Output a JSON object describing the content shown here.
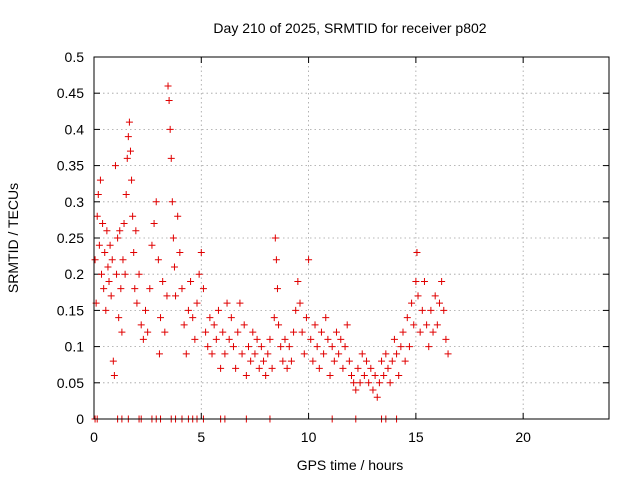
{
  "chart_data": {
    "type": "scatter",
    "title": "Day 210 of 2025, SRMTID for receiver p802",
    "xlabel": "GPS time / hours",
    "ylabel": "SRMTID / TECUs",
    "xlim": [
      0,
      24
    ],
    "ylim": [
      0,
      0.5
    ],
    "xticks": [
      0,
      5,
      10,
      15,
      20
    ],
    "yticks": [
      0,
      0.05,
      0.1,
      0.15,
      0.2,
      0.25,
      0.3,
      0.35,
      0.4,
      0.45,
      0.5
    ],
    "xtick_labels": [
      "0",
      "5",
      "10",
      "15",
      "20"
    ],
    "ytick_labels": [
      "0",
      "0.05",
      "0.1",
      "0.15",
      "0.2",
      "0.25",
      "0.3",
      "0.35",
      "0.4",
      "0.45",
      "0.5"
    ],
    "grid": true,
    "marker": "+",
    "series": [
      {
        "name": "SRMTID",
        "color": "#e00000",
        "points": [
          [
            0.05,
            0.22
          ],
          [
            0.1,
            0.16
          ],
          [
            0.15,
            0.28
          ],
          [
            0.2,
            0.31
          ],
          [
            0.25,
            0.24
          ],
          [
            0.3,
            0.33
          ],
          [
            0.35,
            0.2
          ],
          [
            0.4,
            0.27
          ],
          [
            0.45,
            0.18
          ],
          [
            0.5,
            0.23
          ],
          [
            0.55,
            0.15
          ],
          [
            0.6,
            0.26
          ],
          [
            0.65,
            0.21
          ],
          [
            0.7,
            0.19
          ],
          [
            0.75,
            0.24
          ],
          [
            0.8,
            0.17
          ],
          [
            0.85,
            0.22
          ],
          [
            0.9,
            0.08
          ],
          [
            0.95,
            0.06
          ],
          [
            1.0,
            0.35
          ],
          [
            1.05,
            0.2
          ],
          [
            1.1,
            0.25
          ],
          [
            1.15,
            0.14
          ],
          [
            1.2,
            0.26
          ],
          [
            1.25,
            0.18
          ],
          [
            1.3,
            0.12
          ],
          [
            1.35,
            0.22
          ],
          [
            1.4,
            0.27
          ],
          [
            1.45,
            0.2
          ],
          [
            1.5,
            0.31
          ],
          [
            1.55,
            0.36
          ],
          [
            1.6,
            0.39
          ],
          [
            1.65,
            0.41
          ],
          [
            1.7,
            0.37
          ],
          [
            1.75,
            0.33
          ],
          [
            1.8,
            0.28
          ],
          [
            1.85,
            0.23
          ],
          [
            1.9,
            0.18
          ],
          [
            1.95,
            0.26
          ],
          [
            2.0,
            0.16
          ],
          [
            2.1,
            0.2
          ],
          [
            2.2,
            0.13
          ],
          [
            2.3,
            0.11
          ],
          [
            2.4,
            0.15
          ],
          [
            2.5,
            0.12
          ],
          [
            2.6,
            0.18
          ],
          [
            2.7,
            0.24
          ],
          [
            2.8,
            0.27
          ],
          [
            2.9,
            0.3
          ],
          [
            3.0,
            0.22
          ],
          [
            3.05,
            0.09
          ],
          [
            3.1,
            0.14
          ],
          [
            3.2,
            0.19
          ],
          [
            3.3,
            0.12
          ],
          [
            3.4,
            0.17
          ],
          [
            3.45,
            0.46
          ],
          [
            3.5,
            0.44
          ],
          [
            3.55,
            0.4
          ],
          [
            3.6,
            0.36
          ],
          [
            3.65,
            0.3
          ],
          [
            3.7,
            0.25
          ],
          [
            3.75,
            0.21
          ],
          [
            3.8,
            0.17
          ],
          [
            3.9,
            0.28
          ],
          [
            4.0,
            0.23
          ],
          [
            4.1,
            0.18
          ],
          [
            4.2,
            0.13
          ],
          [
            4.3,
            0.09
          ],
          [
            4.4,
            0.15
          ],
          [
            4.5,
            0.19
          ],
          [
            4.6,
            0.14
          ],
          [
            4.7,
            0.11
          ],
          [
            4.8,
            0.16
          ],
          [
            4.9,
            0.2
          ],
          [
            5.0,
            0.23
          ],
          [
            5.1,
            0.18
          ],
          [
            5.2,
            0.12
          ],
          [
            5.3,
            0.1
          ],
          [
            5.4,
            0.14
          ],
          [
            5.5,
            0.09
          ],
          [
            5.6,
            0.13
          ],
          [
            5.7,
            0.11
          ],
          [
            5.8,
            0.15
          ],
          [
            5.9,
            0.07
          ],
          [
            6.0,
            0.12
          ],
          [
            6.1,
            0.09
          ],
          [
            6.2,
            0.16
          ],
          [
            6.3,
            0.11
          ],
          [
            6.4,
            0.14
          ],
          [
            6.5,
            0.1
          ],
          [
            6.6,
            0.07
          ],
          [
            6.7,
            0.12
          ],
          [
            6.8,
            0.16
          ],
          [
            6.9,
            0.09
          ],
          [
            7.0,
            0.13
          ],
          [
            7.1,
            0.06
          ],
          [
            7.2,
            0.1
          ],
          [
            7.3,
            0.08
          ],
          [
            7.4,
            0.12
          ],
          [
            7.5,
            0.09
          ],
          [
            7.6,
            0.11
          ],
          [
            7.7,
            0.07
          ],
          [
            7.8,
            0.1
          ],
          [
            7.9,
            0.08
          ],
          [
            8.0,
            0.06
          ],
          [
            8.1,
            0.09
          ],
          [
            8.2,
            0.11
          ],
          [
            8.3,
            0.07
          ],
          [
            8.4,
            0.14
          ],
          [
            8.45,
            0.25
          ],
          [
            8.5,
            0.22
          ],
          [
            8.55,
            0.18
          ],
          [
            8.6,
            0.13
          ],
          [
            8.7,
            0.1
          ],
          [
            8.8,
            0.08
          ],
          [
            8.9,
            0.11
          ],
          [
            9.0,
            0.07
          ],
          [
            9.1,
            0.1
          ],
          [
            9.2,
            0.08
          ],
          [
            9.3,
            0.12
          ],
          [
            9.4,
            0.15
          ],
          [
            9.5,
            0.19
          ],
          [
            9.6,
            0.16
          ],
          [
            9.7,
            0.12
          ],
          [
            9.8,
            0.09
          ],
          [
            9.9,
            0.14
          ],
          [
            10.0,
            0.22
          ],
          [
            10.1,
            0.11
          ],
          [
            10.2,
            0.08
          ],
          [
            10.3,
            0.13
          ],
          [
            10.4,
            0.1
          ],
          [
            10.5,
            0.07
          ],
          [
            10.6,
            0.12
          ],
          [
            10.7,
            0.09
          ],
          [
            10.8,
            0.14
          ],
          [
            10.9,
            0.11
          ],
          [
            11.0,
            0.06
          ],
          [
            11.1,
            0.1
          ],
          [
            11.2,
            0.08
          ],
          [
            11.3,
            0.12
          ],
          [
            11.4,
            0.09
          ],
          [
            11.5,
            0.11
          ],
          [
            11.6,
            0.07
          ],
          [
            11.7,
            0.1
          ],
          [
            11.8,
            0.13
          ],
          [
            11.9,
            0.08
          ],
          [
            12.0,
            0.06
          ],
          [
            12.1,
            0.05
          ],
          [
            12.2,
            0.04
          ],
          [
            12.3,
            0.07
          ],
          [
            12.4,
            0.05
          ],
          [
            12.5,
            0.09
          ],
          [
            12.6,
            0.06
          ],
          [
            12.7,
            0.08
          ],
          [
            12.8,
            0.05
          ],
          [
            12.9,
            0.07
          ],
          [
            13.0,
            0.04
          ],
          [
            13.1,
            0.06
          ],
          [
            13.2,
            0.03
          ],
          [
            13.3,
            0.05
          ],
          [
            13.4,
            0.08
          ],
          [
            13.5,
            0.06
          ],
          [
            13.6,
            0.09
          ],
          [
            13.7,
            0.07
          ],
          [
            13.8,
            0.05
          ],
          [
            13.9,
            0.08
          ],
          [
            14.0,
            0.11
          ],
          [
            14.1,
            0.09
          ],
          [
            14.2,
            0.06
          ],
          [
            14.3,
            0.1
          ],
          [
            14.4,
            0.12
          ],
          [
            14.5,
            0.08
          ],
          [
            14.6,
            0.14
          ],
          [
            14.7,
            0.1
          ],
          [
            14.8,
            0.16
          ],
          [
            14.9,
            0.13
          ],
          [
            15.0,
            0.19
          ],
          [
            15.05,
            0.23
          ],
          [
            15.1,
            0.17
          ],
          [
            15.2,
            0.12
          ],
          [
            15.3,
            0.15
          ],
          [
            15.4,
            0.19
          ],
          [
            15.5,
            0.13
          ],
          [
            15.6,
            0.1
          ],
          [
            15.7,
            0.15
          ],
          [
            15.8,
            0.12
          ],
          [
            15.9,
            0.17
          ],
          [
            16.0,
            0.13
          ],
          [
            16.1,
            0.16
          ],
          [
            16.2,
            0.19
          ],
          [
            16.3,
            0.15
          ],
          [
            16.4,
            0.11
          ],
          [
            16.5,
            0.09
          ],
          [
            0.05,
            0
          ],
          [
            0.15,
            0
          ],
          [
            1.1,
            0
          ],
          [
            1.3,
            0
          ],
          [
            1.6,
            0
          ],
          [
            2.1,
            0
          ],
          [
            2.2,
            0
          ],
          [
            2.7,
            0
          ],
          [
            2.9,
            0
          ],
          [
            3.1,
            0
          ],
          [
            3.6,
            0
          ],
          [
            3.8,
            0
          ],
          [
            4.1,
            0
          ],
          [
            4.4,
            0
          ],
          [
            4.6,
            0
          ],
          [
            4.8,
            0
          ],
          [
            5.1,
            0
          ],
          [
            5.9,
            0
          ],
          [
            6.1,
            0
          ],
          [
            7.1,
            0
          ],
          [
            8.2,
            0
          ],
          [
            11.1,
            0
          ],
          [
            12.2,
            0
          ],
          [
            13.4,
            0
          ],
          [
            13.6,
            0
          ],
          [
            14.1,
            0
          ]
        ]
      }
    ]
  }
}
